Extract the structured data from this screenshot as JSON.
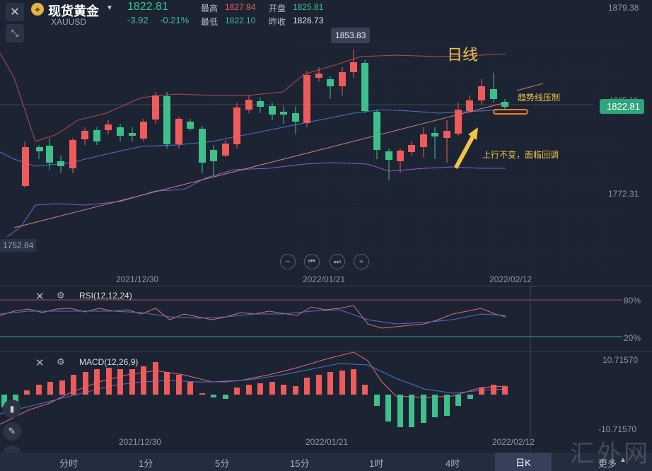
{
  "header": {
    "title": "现货黄金",
    "symbol": "XAUUSD",
    "last_price": "1822.81",
    "change": "-3.92",
    "change_pct": "-0.21%",
    "high_label": "最高",
    "high_value": "1827.94",
    "open_label": "开盘",
    "open_value": "1825.81",
    "low_label": "最低",
    "low_value": "1822.10",
    "prev_close_label": "昨收",
    "prev_close_value": "1826.73"
  },
  "chart": {
    "price_axis": [
      "1879.38",
      "1772.31",
      "1752.84"
    ],
    "partial_axis": "1825.10",
    "current_price_tag": "1822.81",
    "high_marker": "1853.83",
    "dates": [
      "2021/12/30",
      "2022/01/21",
      "2022/02/12"
    ],
    "annotations": {
      "period": "日线",
      "trendline": "趋势线压制",
      "note": "上行不变，面临回调"
    },
    "nav": [
      "zoom-out",
      "rewind",
      "step-forward",
      "zoom-in"
    ],
    "colors": {
      "up": "#ef5b5b",
      "down": "#3fc08a",
      "annotation": "#f0c34a"
    }
  },
  "rsi": {
    "label": "RSI(12,12,24)",
    "upper": "80%",
    "lower": "20%"
  },
  "macd": {
    "label": "MACD(12,26,9)",
    "upper": "10.71570",
    "lower": "-10.71570",
    "dates": [
      "2021/12/30",
      "2022/01/21",
      "2022/02/12"
    ]
  },
  "tabs": [
    "分时",
    "1分",
    "5分",
    "15分",
    "1时",
    "4时",
    "日K",
    "更多"
  ],
  "active_tab": "日K",
  "watermark": "汇外网"
}
